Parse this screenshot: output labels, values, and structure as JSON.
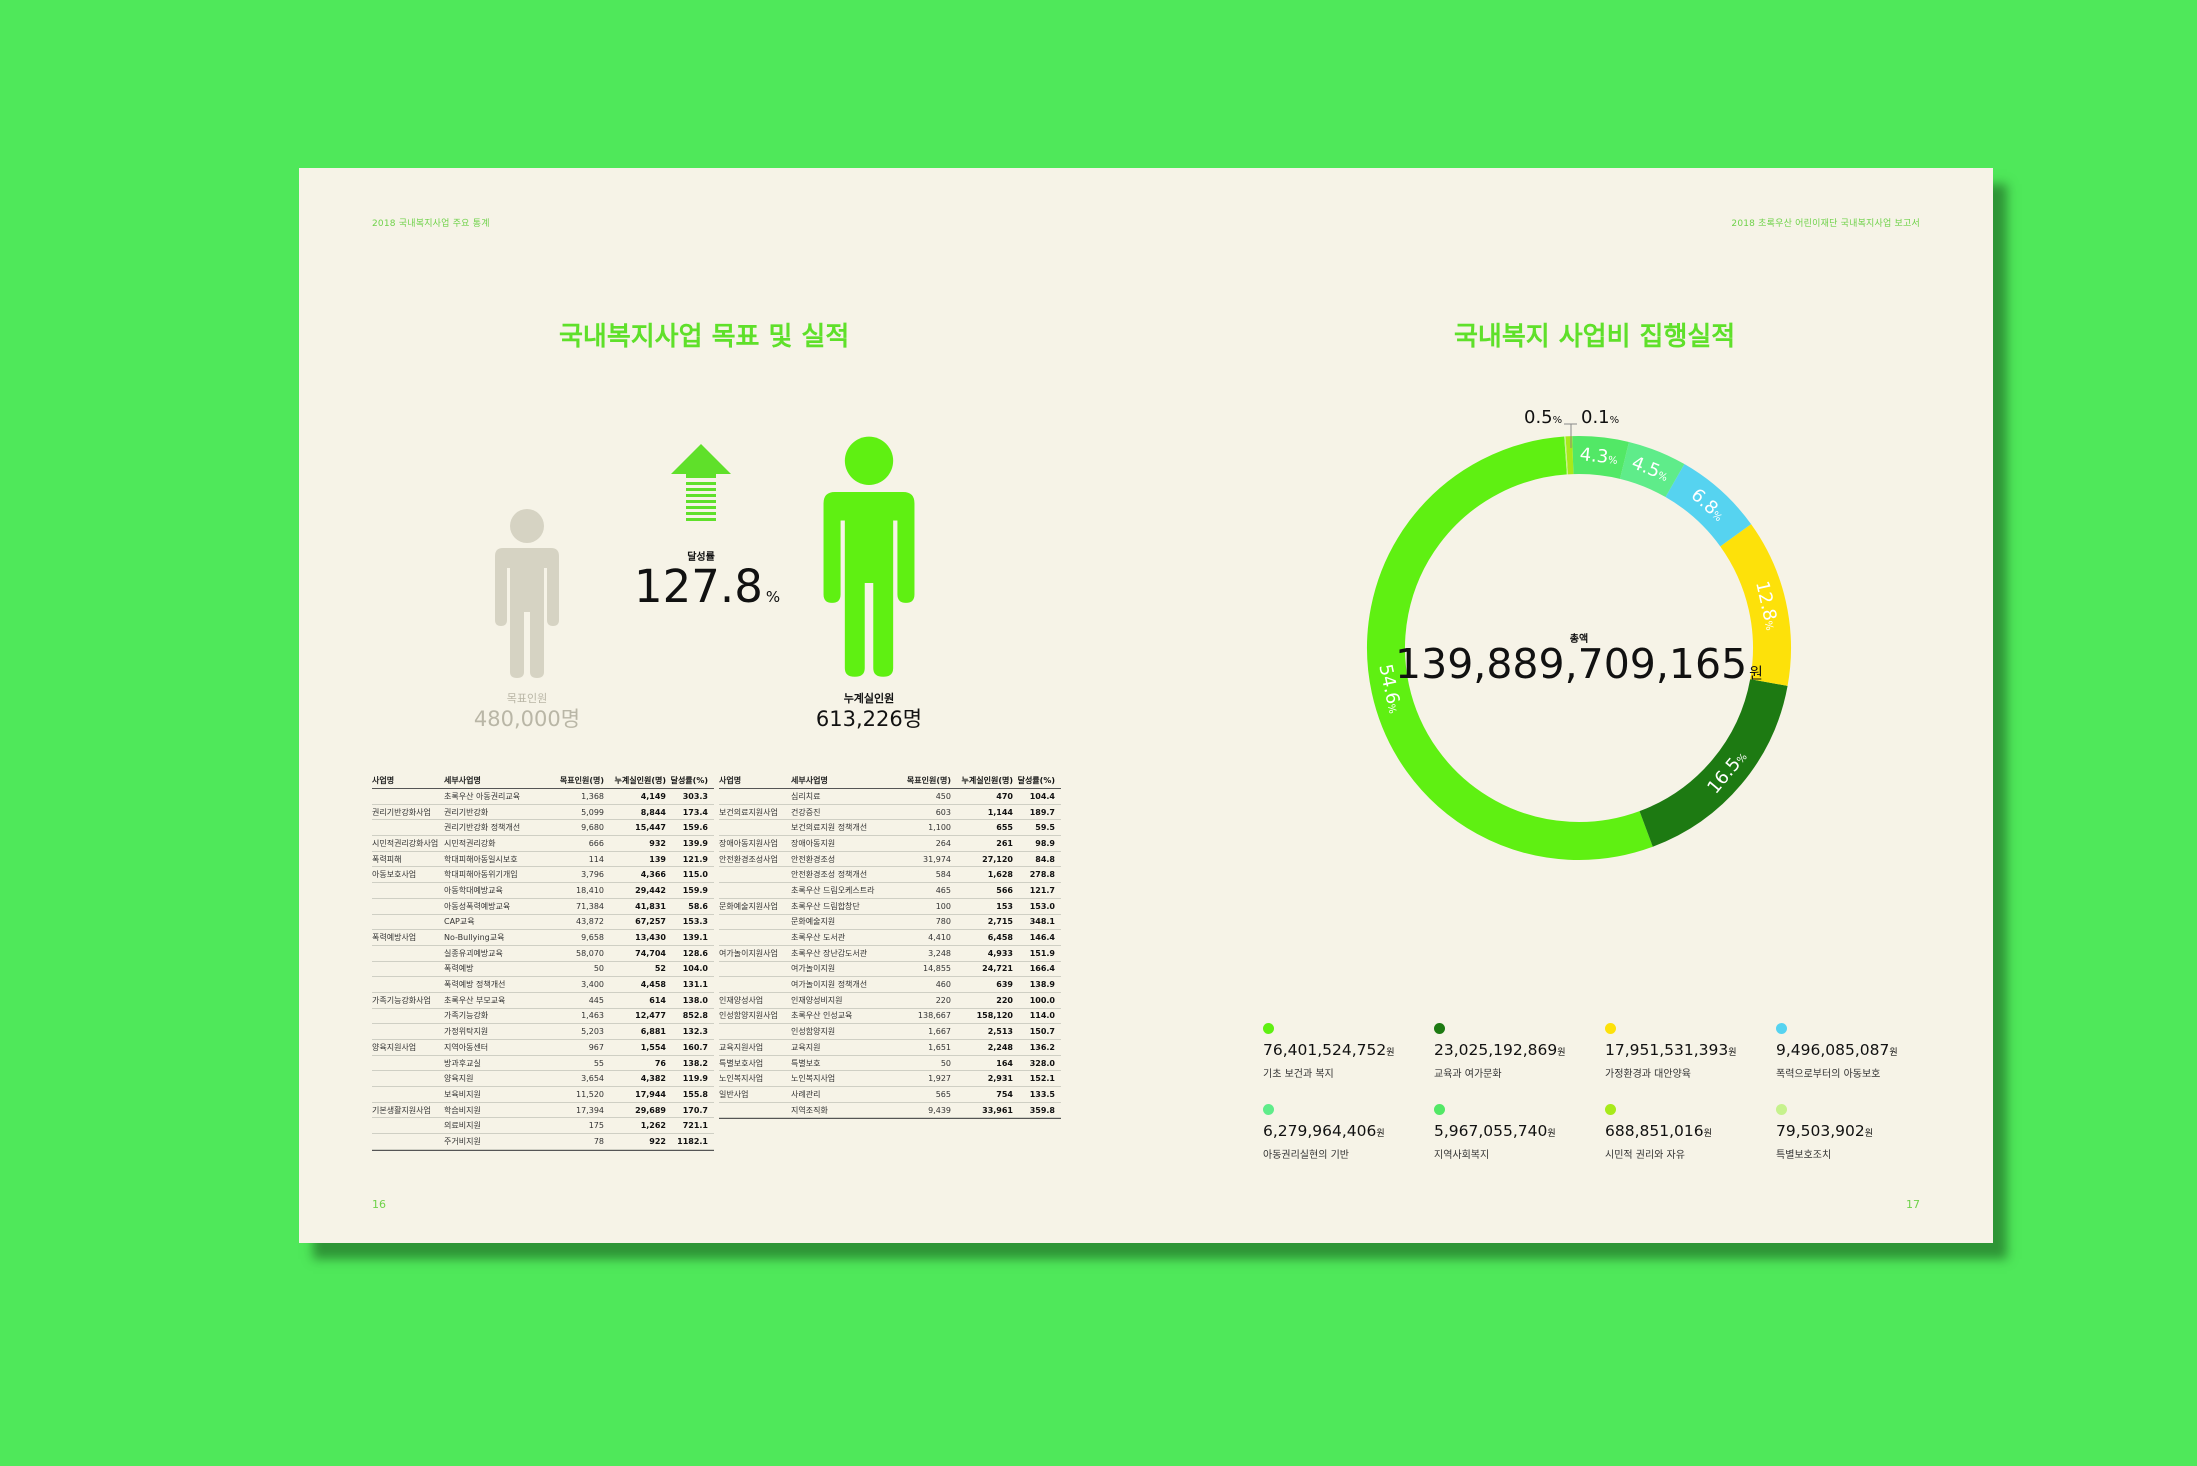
{
  "left_page": {
    "running_head": "2018 국내복지사업 주요 통계",
    "page_number": "16",
    "title": "국내복지사업 목표 및 실적",
    "target": {
      "label": "목표인원",
      "value": "480,000명"
    },
    "achieved": {
      "label": "누계실인원",
      "value": "613,226명"
    },
    "rate": {
      "label": "달성률",
      "value": "127.8",
      "unit": "%"
    },
    "table_headers": [
      "사업명",
      "세부사업명",
      "목표인원(명)",
      "누계실인원(명)",
      "달성률(%)"
    ],
    "table_left": [
      [
        "",
        "초록우산 아동권리교육",
        "1,368",
        "4,149",
        "303.3"
      ],
      [
        "권리기반강화사업",
        "권리기반강화",
        "5,099",
        "8,844",
        "173.4"
      ],
      [
        "",
        "권리기반강화 정책개선",
        "9,680",
        "15,447",
        "159.6"
      ],
      [
        "시민적권리강화사업",
        "시민적권리강화",
        "666",
        "932",
        "139.9"
      ],
      [
        "폭력피해",
        "학대피해아동일시보호",
        "114",
        "139",
        "121.9"
      ],
      [
        "아동보호사업",
        "학대피해아동위기개입",
        "3,796",
        "4,366",
        "115.0"
      ],
      [
        "",
        "아동학대예방교육",
        "18,410",
        "29,442",
        "159.9"
      ],
      [
        "",
        "아동성폭력예방교육",
        "71,384",
        "41,831",
        "58.6"
      ],
      [
        "",
        "CAP교육",
        "43,872",
        "67,257",
        "153.3"
      ],
      [
        "폭력예방사업",
        "No-Bullying교육",
        "9,658",
        "13,430",
        "139.1"
      ],
      [
        "",
        "실종유괴예방교육",
        "58,070",
        "74,704",
        "128.6"
      ],
      [
        "",
        "폭력예방",
        "50",
        "52",
        "104.0"
      ],
      [
        "",
        "폭력예방 정책개선",
        "3,400",
        "4,458",
        "131.1"
      ],
      [
        "가족기능강화사업",
        "초록우산 부모교육",
        "445",
        "614",
        "138.0"
      ],
      [
        "",
        "가족기능강화",
        "1,463",
        "12,477",
        "852.8"
      ],
      [
        "",
        "가정위탁지원",
        "5,203",
        "6,881",
        "132.3"
      ],
      [
        "양육지원사업",
        "지역아동센터",
        "967",
        "1,554",
        "160.7"
      ],
      [
        "",
        "방과후교실",
        "55",
        "76",
        "138.2"
      ],
      [
        "",
        "양육지원",
        "3,654",
        "4,382",
        "119.9"
      ],
      [
        "",
        "보육비지원",
        "11,520",
        "17,944",
        "155.8"
      ],
      [
        "기본생활지원사업",
        "학습비지원",
        "17,394",
        "29,689",
        "170.7"
      ],
      [
        "",
        "의료비지원",
        "175",
        "1,262",
        "721.1"
      ],
      [
        "",
        "주거비지원",
        "78",
        "922",
        "1182.1"
      ]
    ],
    "table_right": [
      [
        "",
        "심리치료",
        "450",
        "470",
        "104.4"
      ],
      [
        "보건의료지원사업",
        "건강증진",
        "603",
        "1,144",
        "189.7"
      ],
      [
        "",
        "보건의료지원 정책개선",
        "1,100",
        "655",
        "59.5"
      ],
      [
        "장애아동지원사업",
        "장애아동지원",
        "264",
        "261",
        "98.9"
      ],
      [
        "안전환경조성사업",
        "안전환경조성",
        "31,974",
        "27,120",
        "84.8"
      ],
      [
        "",
        "안전환경조성 정책개선",
        "584",
        "1,628",
        "278.8"
      ],
      [
        "",
        "초록우산 드림오케스트라",
        "465",
        "566",
        "121.7"
      ],
      [
        "문화예술지원사업",
        "초록우산 드림합창단",
        "100",
        "153",
        "153.0"
      ],
      [
        "",
        "문화예술지원",
        "780",
        "2,715",
        "348.1"
      ],
      [
        "",
        "초록우산 도서관",
        "4,410",
        "6,458",
        "146.4"
      ],
      [
        "여가놀이지원사업",
        "초록우산 장난감도서관",
        "3,248",
        "4,933",
        "151.9"
      ],
      [
        "",
        "여가놀이지원",
        "14,855",
        "24,721",
        "166.4"
      ],
      [
        "",
        "여가놀이지원 정책개선",
        "460",
        "639",
        "138.9"
      ],
      [
        "인재양성사업",
        "인재양성비지원",
        "220",
        "220",
        "100.0"
      ],
      [
        "인성함양지원사업",
        "초록우산 인성교육",
        "138,667",
        "158,120",
        "114.0"
      ],
      [
        "",
        "인성함양지원",
        "1,667",
        "2,513",
        "150.7"
      ],
      [
        "교육지원사업",
        "교육지원",
        "1,651",
        "2,248",
        "136.2"
      ],
      [
        "특별보호사업",
        "특별보호",
        "50",
        "164",
        "328.0"
      ],
      [
        "노인복지사업",
        "노인복지사업",
        "1,927",
        "2,931",
        "152.1"
      ],
      [
        "일반사업",
        "사례관리",
        "565",
        "754",
        "133.5"
      ],
      [
        "",
        "지역조직화",
        "9,439",
        "33,961",
        "359.8"
      ]
    ]
  },
  "right_page": {
    "running_head": "2018 초록우산 어린이재단 국내복지사업 보고서",
    "page_number": "17",
    "title": "국내복지 사업비 집행실적",
    "total_label": "총액",
    "total_value": "139,889,709,165",
    "total_unit": "원",
    "colors": {
      "green_main": "#5ff012",
      "dark_green": "#1d7a12",
      "yellow": "#fde10a",
      "cyan": "#56d3f0",
      "mint": "#5fec8a",
      "mint2": "#52e866",
      "lime": "#a7ea1a",
      "pale": "#c6f28d"
    },
    "legend": [
      {
        "value": "76,401,524,752",
        "unit": "원",
        "label": "기초 보건과 복지",
        "color": "#5ff012"
      },
      {
        "value": "23,025,192,869",
        "unit": "원",
        "label": "교육과 여가문화",
        "color": "#1d7a12"
      },
      {
        "value": "17,951,531,393",
        "unit": "원",
        "label": "가정환경과 대안양육",
        "color": "#fde10a"
      },
      {
        "value": "9,496,085,087",
        "unit": "원",
        "label": "폭력으로부터의 아동보호",
        "color": "#56d3f0"
      },
      {
        "value": "6,279,964,406",
        "unit": "원",
        "label": "아동권리실현의 기반",
        "color": "#5fec8a"
      },
      {
        "value": "5,967,055,740",
        "unit": "원",
        "label": "지역사회복지",
        "color": "#52e866"
      },
      {
        "value": "688,851,016",
        "unit": "원",
        "label": "시민적 권리와 자유",
        "color": "#a7ea1a"
      },
      {
        "value": "79,503,902",
        "unit": "원",
        "label": "특별보호조치",
        "color": "#c6f28d"
      }
    ]
  },
  "chart_data": {
    "type": "pie",
    "title": "국내복지 사업비 집행실적",
    "slices": [
      {
        "name": "기초 보건과 복지",
        "percent": 54.6,
        "value": 76401524752,
        "color": "#5ff012"
      },
      {
        "name": "교육과 여가문화",
        "percent": 16.5,
        "value": 23025192869,
        "color": "#1d7a12"
      },
      {
        "name": "가정환경과 대안양육",
        "percent": 12.8,
        "value": 17951531393,
        "color": "#fde10a"
      },
      {
        "name": "폭력으로부터의 아동보호",
        "percent": 6.8,
        "value": 9496085087,
        "color": "#56d3f0"
      },
      {
        "name": "아동권리실현의 기반",
        "percent": 4.5,
        "value": 6279964406,
        "color": "#5fec8a"
      },
      {
        "name": "지역사회복지",
        "percent": 4.3,
        "value": 5967055740,
        "color": "#52e866"
      },
      {
        "name": "시민적 권리와 자유",
        "percent": 0.5,
        "value": 688851016,
        "color": "#a7ea1a"
      },
      {
        "name": "특별보호조치",
        "percent": 0.1,
        "value": 79503902,
        "color": "#c6f28d"
      }
    ],
    "labels": [
      "54.6",
      "16.5",
      "12.8",
      "6.8",
      "4.5",
      "4.3",
      "0.5",
      "0.1"
    ],
    "unit": "%"
  }
}
